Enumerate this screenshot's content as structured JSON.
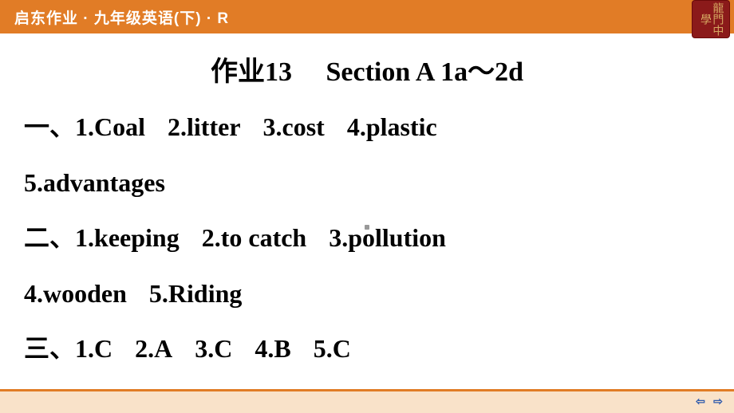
{
  "header": {
    "text": "启东作业 · 九年级英语(下) · R"
  },
  "stamp": {
    "text": "龍門中學"
  },
  "title": "作业13　 Section A 1a～2d",
  "sections": {
    "one": {
      "marker": "一、",
      "items": [
        "1.Coal",
        "2.litter",
        "3.cost",
        "4.plastic"
      ],
      "items2": [
        "5.advantages"
      ]
    },
    "two": {
      "marker": "二、",
      "items": [
        "1.keeping",
        "2.to catch",
        "3.pollution"
      ],
      "items2": [
        "4.wooden",
        "5.Riding"
      ]
    },
    "three": {
      "marker": "三、",
      "items": [
        "1.C",
        "2.A",
        "3.C",
        "4.B",
        "5.C"
      ]
    }
  },
  "nav": {
    "prev": "⇦",
    "next": "⇨"
  }
}
